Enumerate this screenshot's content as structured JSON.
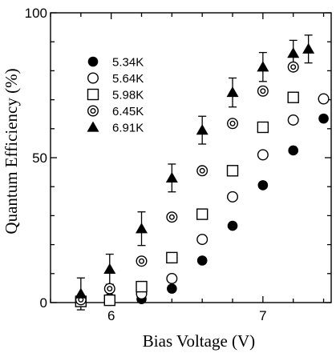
{
  "chart_data": {
    "type": "scatter",
    "title": "",
    "xlabel": "Bias Voltage (V)",
    "ylabel": "Quantum Efficiency (%)",
    "xlim": [
      5.6,
      7.45
    ],
    "ylim": [
      0,
      100
    ],
    "xticks": [
      6,
      7
    ],
    "xtick_labels": [
      "6",
      "7"
    ],
    "yticks": [
      0,
      50,
      100
    ],
    "ytick_labels": [
      "0",
      "50",
      "100"
    ],
    "legend_position": "top-left",
    "series": [
      {
        "name": "5.34K",
        "marker": "filled-circle",
        "points": [
          [
            5.8,
            0.5
          ],
          [
            5.99,
            0.6
          ],
          [
            6.2,
            1.2
          ],
          [
            6.4,
            4.8
          ],
          [
            6.6,
            14.5
          ],
          [
            6.8,
            26.5
          ],
          [
            7.0,
            40.5
          ],
          [
            7.2,
            52.5
          ],
          [
            7.4,
            63.5
          ]
        ]
      },
      {
        "name": "5.64K",
        "marker": "open-circle",
        "points": [
          [
            5.8,
            0.8
          ],
          [
            5.99,
            1.3
          ],
          [
            6.2,
            3.0
          ],
          [
            6.4,
            8.3
          ],
          [
            6.6,
            21.8
          ],
          [
            6.8,
            36.5
          ],
          [
            7.0,
            51.0
          ],
          [
            7.2,
            63.0
          ],
          [
            7.4,
            70.3
          ]
        ]
      },
      {
        "name": "5.98K",
        "marker": "open-square",
        "points": [
          [
            5.8,
            0.4
          ],
          [
            5.99,
            0.8
          ],
          [
            6.2,
            5.5
          ],
          [
            6.4,
            15.5
          ],
          [
            6.6,
            30.5
          ],
          [
            6.8,
            45.5
          ],
          [
            7.0,
            60.5
          ],
          [
            7.2,
            70.8
          ]
        ]
      },
      {
        "name": "6.45K",
        "marker": "double-circle",
        "points": [
          [
            5.8,
            1.0
          ],
          [
            5.99,
            4.8
          ],
          [
            6.2,
            14.3
          ],
          [
            6.4,
            29.5
          ],
          [
            6.6,
            45.5
          ],
          [
            6.8,
            61.8
          ],
          [
            7.0,
            73.0
          ],
          [
            7.2,
            81.3
          ]
        ]
      },
      {
        "name": "6.91K",
        "marker": "filled-triangle",
        "points": [
          [
            5.8,
            3.0,
            5.5
          ],
          [
            5.99,
            11.5,
            5.2
          ],
          [
            6.2,
            25.5,
            5.8
          ],
          [
            6.4,
            43.0,
            4.8
          ],
          [
            6.6,
            59.5,
            4.8
          ],
          [
            6.8,
            72.5,
            5.0
          ],
          [
            7.0,
            81.3,
            5.0
          ],
          [
            7.2,
            86.0,
            4.5
          ],
          [
            7.3,
            87.5,
            4.8
          ]
        ]
      }
    ]
  }
}
